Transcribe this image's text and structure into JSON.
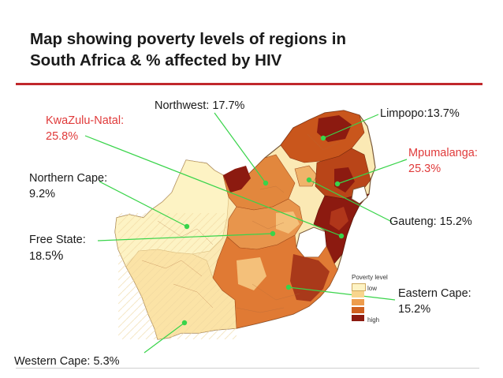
{
  "title": {
    "line1": "Map showing poverty levels of regions in",
    "line2": "South Africa & % affected by HIV"
  },
  "regions": [
    {
      "name": "KwaZulu-Natal",
      "line1": "KwaZulu-Natal:",
      "line2": "25.8%",
      "hiv_percent": 25.8,
      "highlight": true
    },
    {
      "name": "Northwest",
      "line1": "Northwest: 17.7%",
      "hiv_percent": 17.7,
      "highlight": false
    },
    {
      "name": "Limpopo",
      "line1": "Limpopo:13.7%",
      "hiv_percent": 13.7,
      "highlight": false
    },
    {
      "name": "Mpumalanga",
      "line1": "Mpumalanga:",
      "line2": "25.3%",
      "hiv_percent": 25.3,
      "highlight": true
    },
    {
      "name": "Northern Cape",
      "line1": "Northern Cape:",
      "line2": "9.2%",
      "hiv_percent": 9.2,
      "highlight": false
    },
    {
      "name": "Gauteng",
      "line1": "Gauteng: 15.2%",
      "hiv_percent": 15.2,
      "highlight": false
    },
    {
      "name": "Free State",
      "line1": "Free State:",
      "line2_main": "18.5",
      "line2_suffix": "%",
      "hiv_percent": 18.5,
      "highlight": false
    },
    {
      "name": "Eastern Cape",
      "line1": "Eastern Cape:",
      "line2": "15.2%",
      "hiv_percent": 15.2,
      "highlight": false
    },
    {
      "name": "Western Cape",
      "line1": "Western Cape: 5.3%",
      "hiv_percent": 5.3,
      "highlight": false
    }
  ],
  "legend": {
    "title": "Poverty level",
    "low": "low",
    "high": "high",
    "colors": [
      "#fdf3c4",
      "#f8d58d",
      "#ee9c4c",
      "#d0601f",
      "#8c1a10"
    ]
  },
  "colors": {
    "title_rule": "#c0282c",
    "highlight_text": "#e03a3a",
    "leader_line": "#39d44a"
  }
}
